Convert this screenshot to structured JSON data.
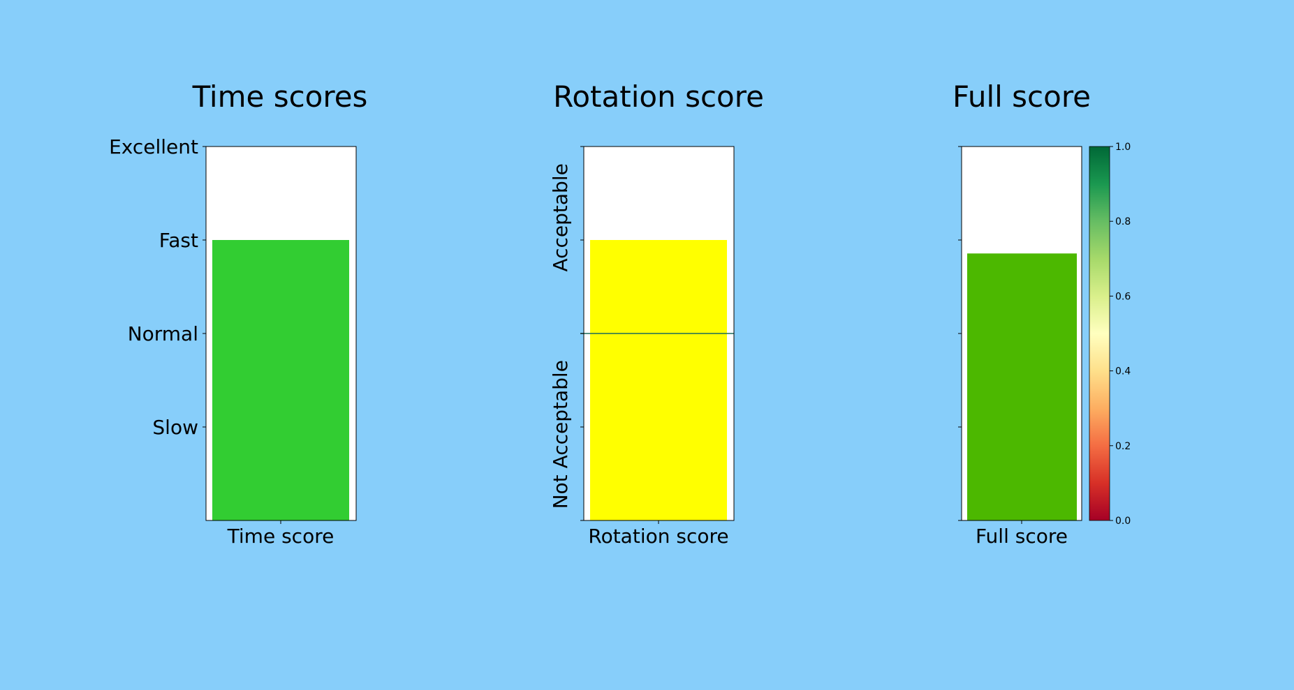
{
  "chart_data": [
    {
      "type": "bar",
      "title": "Time scores",
      "categories": [
        "Time score"
      ],
      "values": [
        0.75
      ],
      "ylim": [
        0,
        1
      ],
      "yticks": [
        0.25,
        0.5,
        0.75,
        1.0
      ],
      "ytick_labels": [
        "Slow",
        "Normal",
        "Fast",
        "Excellent"
      ],
      "bar_color": "#32CD32"
    },
    {
      "type": "bar",
      "title": "Rotation score",
      "categories": [
        "Rotation score"
      ],
      "values": [
        0.75
      ],
      "ylim": [
        0,
        1
      ],
      "threshold": 0.5,
      "region_labels": [
        {
          "text": "Acceptable",
          "center": 0.81
        },
        {
          "text": "Not Acceptable",
          "center": 0.23
        }
      ],
      "bar_color": "#FFFF00",
      "threshold_color": "#1a6b5a"
    },
    {
      "type": "bar",
      "title": "Full score",
      "categories": [
        "Full score"
      ],
      "values": [
        0.714
      ],
      "ylim": [
        0,
        1
      ],
      "bar_color": "#4CB800",
      "colorbar": {
        "colormap": "RdYlGn",
        "range": [
          0.0,
          1.0
        ],
        "tick_labels": [
          "0.0",
          "0.2",
          "0.4",
          "0.6",
          "0.8",
          "1.0"
        ],
        "stops": [
          "#a50026",
          "#d73027",
          "#f46d43",
          "#fdae61",
          "#fee08b",
          "#ffffbf",
          "#d9ef8b",
          "#a6d96a",
          "#66bd63",
          "#1a9850",
          "#006837"
        ]
      }
    }
  ]
}
